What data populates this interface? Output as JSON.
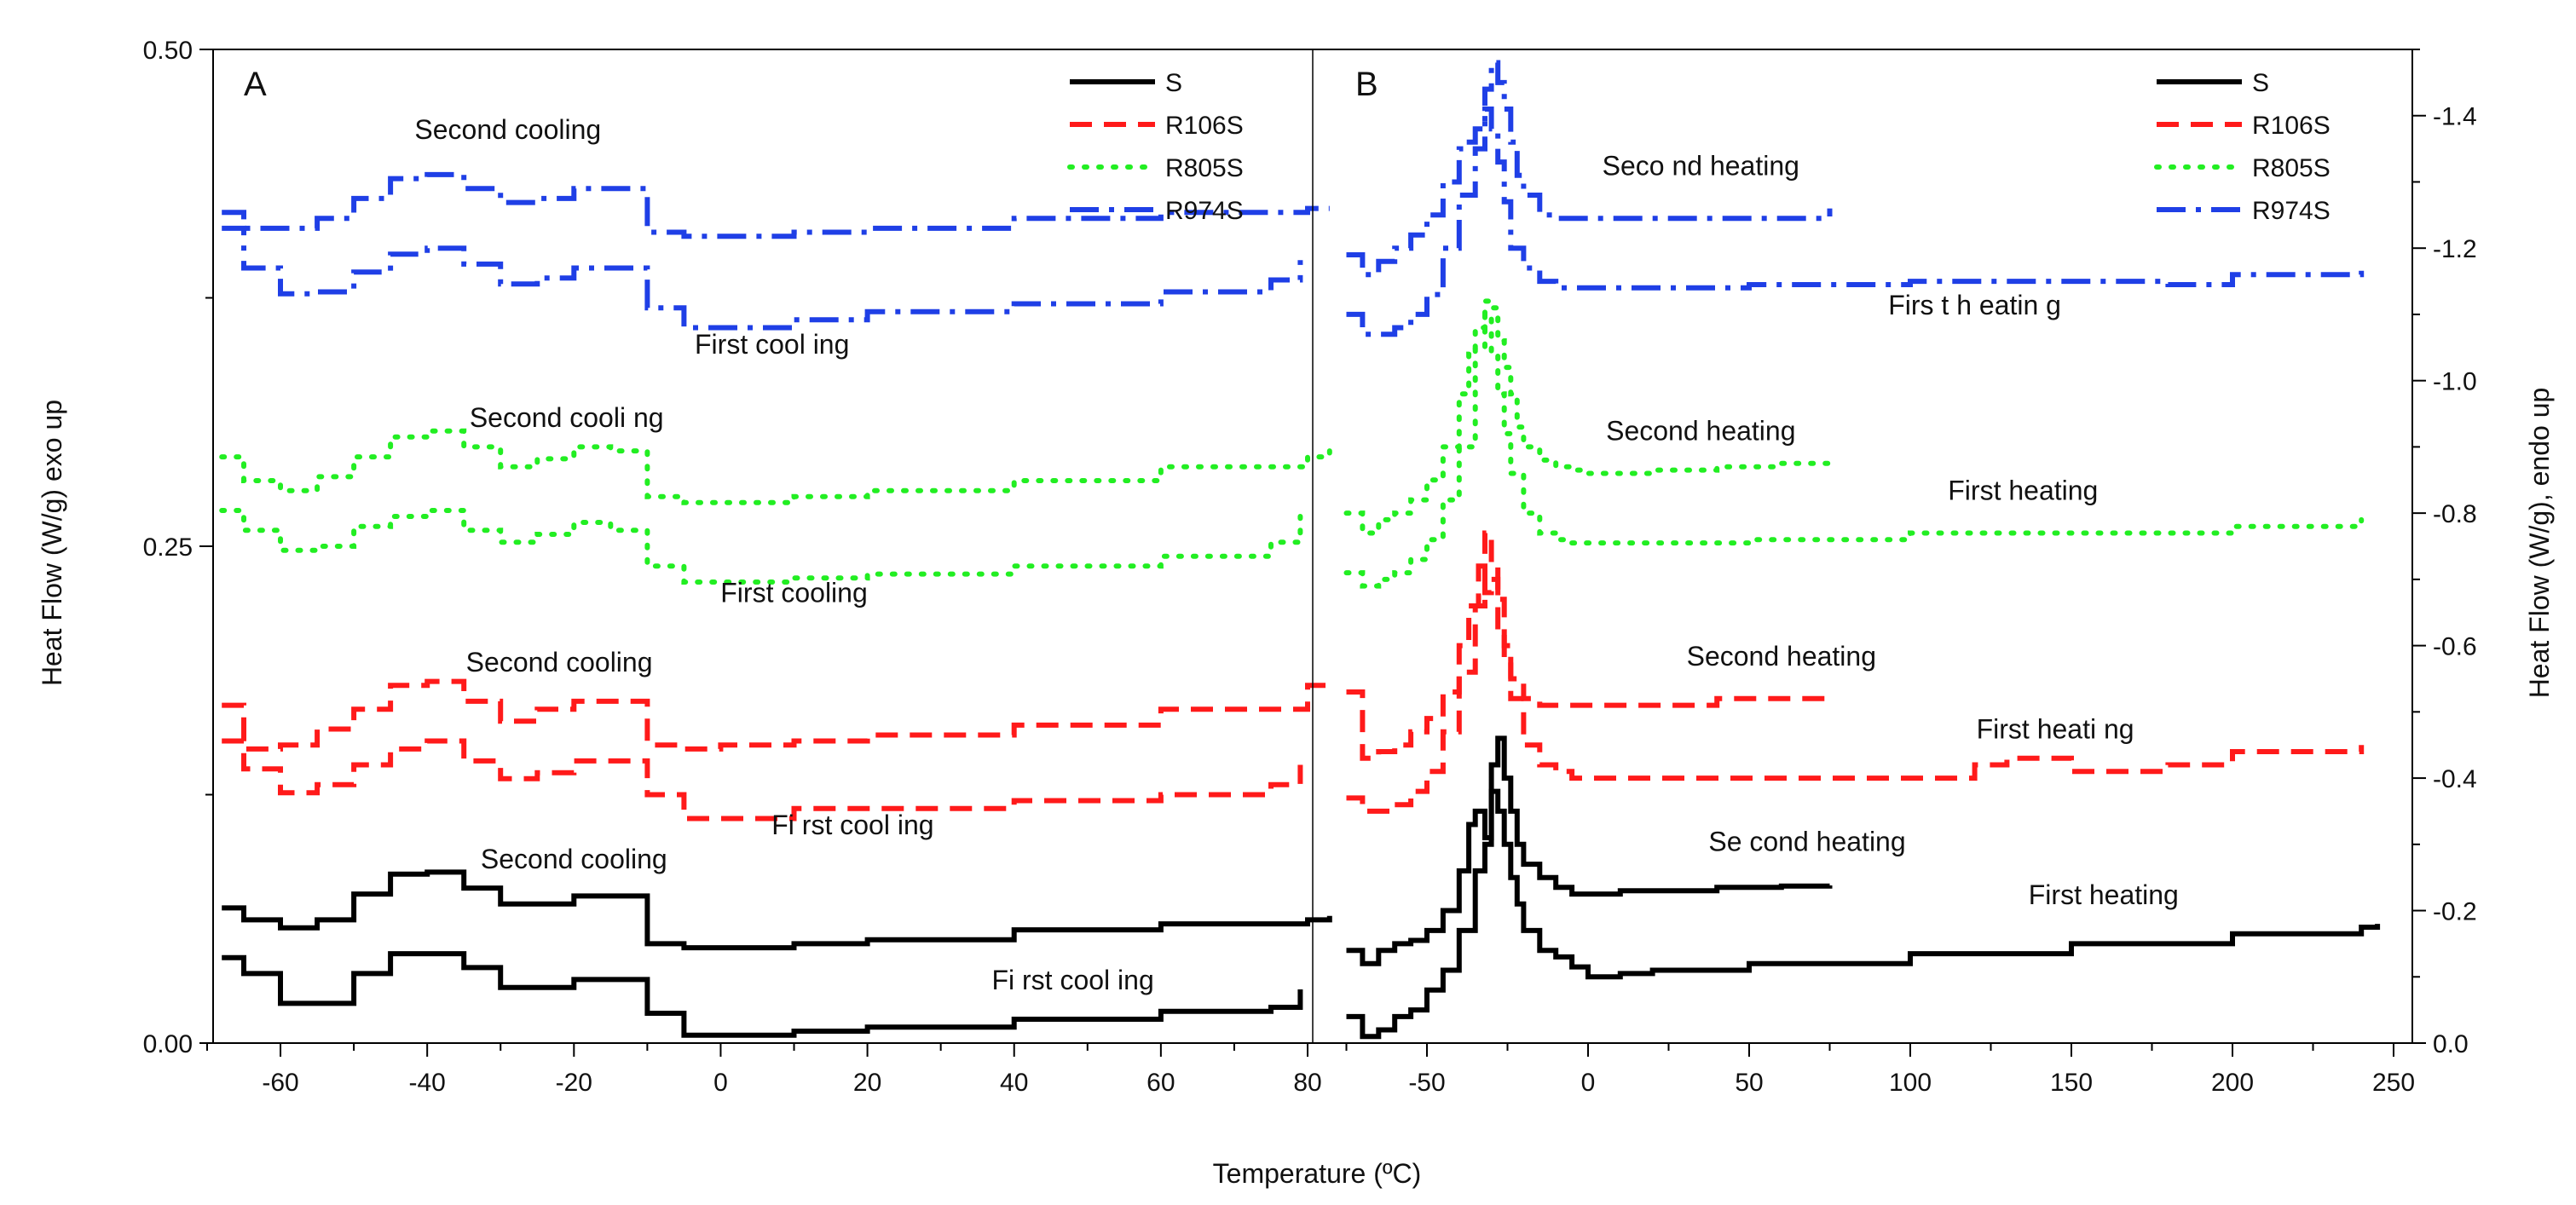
{
  "chart_data": [
    {
      "panel": "A",
      "type": "line",
      "xlabel": "Temperature (ºC)",
      "ylabel": "Heat Flow (W/g) exo up",
      "xlim": [
        -70,
        83
      ],
      "ylim": [
        0,
        0.5
      ],
      "xticks": [
        "-60",
        "-40",
        "-20",
        "0",
        "20",
        "40",
        "60",
        "80"
      ],
      "yticks": [
        "0.00",
        "0.25",
        "0.50"
      ],
      "colors": {
        "S": "#000000",
        "R106S": "#ff1a1a",
        "R805S": "#22ee22",
        "R974S": "#1f3fe6"
      },
      "legend": [
        "S",
        "R106S",
        "R805S",
        "R974S"
      ],
      "legend_position": "top-right",
      "series": [
        {
          "name": "S",
          "curve": "Second cooling",
          "x": [
            -68,
            -65,
            -60,
            -55,
            -50,
            -45,
            -40,
            -35,
            -30,
            -25,
            -20,
            -15,
            -10,
            -5,
            0,
            10,
            20,
            40,
            60,
            80,
            83
          ],
          "values": [
            0.068,
            0.062,
            0.058,
            0.062,
            0.075,
            0.085,
            0.086,
            0.078,
            0.07,
            0.07,
            0.074,
            0.074,
            0.05,
            0.048,
            0.048,
            0.05,
            0.052,
            0.057,
            0.06,
            0.062,
            0.064
          ]
        },
        {
          "name": "S",
          "curve": "First cooling",
          "x": [
            -68,
            -65,
            -60,
            -55,
            -50,
            -45,
            -40,
            -35,
            -30,
            -25,
            -20,
            -15,
            -10,
            -5,
            0,
            10,
            20,
            40,
            60,
            75,
            79
          ],
          "values": [
            0.043,
            0.035,
            0.02,
            0.02,
            0.035,
            0.045,
            0.045,
            0.038,
            0.028,
            0.028,
            0.032,
            0.032,
            0.015,
            0.004,
            0.004,
            0.006,
            0.008,
            0.012,
            0.016,
            0.018,
            0.027
          ]
        },
        {
          "name": "R106S",
          "curve": "Second cooling",
          "x": [
            -68,
            -65,
            -60,
            -55,
            -50,
            -45,
            -40,
            -35,
            -30,
            -25,
            -20,
            -15,
            -10,
            -5,
            0,
            10,
            20,
            40,
            60,
            80,
            83
          ],
          "values": [
            0.17,
            0.148,
            0.15,
            0.158,
            0.168,
            0.18,
            0.182,
            0.172,
            0.162,
            0.168,
            0.172,
            0.172,
            0.15,
            0.148,
            0.15,
            0.152,
            0.155,
            0.16,
            0.168,
            0.18,
            0.182
          ]
        },
        {
          "name": "R106S",
          "curve": "First cooling",
          "x": [
            -68,
            -65,
            -60,
            -55,
            -50,
            -45,
            -40,
            -35,
            -30,
            -25,
            -20,
            -15,
            -10,
            -5,
            0,
            10,
            20,
            40,
            60,
            75,
            79
          ],
          "values": [
            0.152,
            0.138,
            0.126,
            0.13,
            0.14,
            0.148,
            0.152,
            0.142,
            0.133,
            0.136,
            0.142,
            0.142,
            0.125,
            0.113,
            0.113,
            0.118,
            0.118,
            0.122,
            0.125,
            0.13,
            0.14
          ]
        },
        {
          "name": "R805S",
          "curve": "Second cooling",
          "x": [
            -68,
            -65,
            -60,
            -55,
            -50,
            -45,
            -40,
            -35,
            -30,
            -25,
            -20,
            -15,
            -10,
            -5,
            0,
            10,
            20,
            40,
            60,
            80,
            83
          ],
          "values": [
            0.295,
            0.283,
            0.278,
            0.285,
            0.295,
            0.305,
            0.308,
            0.3,
            0.29,
            0.294,
            0.3,
            0.298,
            0.275,
            0.272,
            0.272,
            0.275,
            0.278,
            0.283,
            0.29,
            0.295,
            0.298
          ]
        },
        {
          "name": "R805S",
          "curve": "First cooling",
          "x": [
            -68,
            -65,
            -60,
            -55,
            -50,
            -45,
            -40,
            -35,
            -30,
            -25,
            -20,
            -15,
            -10,
            -5,
            0,
            10,
            20,
            40,
            60,
            75,
            79
          ],
          "values": [
            0.268,
            0.258,
            0.248,
            0.25,
            0.26,
            0.265,
            0.268,
            0.258,
            0.252,
            0.256,
            0.262,
            0.258,
            0.24,
            0.232,
            0.232,
            0.234,
            0.236,
            0.24,
            0.245,
            0.252,
            0.265
          ]
        },
        {
          "name": "R974S",
          "curve": "Second cooling",
          "x": [
            -68,
            -65,
            -60,
            -55,
            -50,
            -45,
            -40,
            -35,
            -30,
            -25,
            -20,
            -15,
            -10,
            -5,
            0,
            10,
            20,
            40,
            60,
            80,
            83
          ],
          "values": [
            0.418,
            0.41,
            0.41,
            0.415,
            0.425,
            0.435,
            0.437,
            0.43,
            0.423,
            0.425,
            0.43,
            0.43,
            0.408,
            0.406,
            0.406,
            0.408,
            0.41,
            0.415,
            0.418,
            0.42,
            0.42
          ]
        },
        {
          "name": "R974S",
          "curve": "First cooling",
          "x": [
            -68,
            -65,
            -60,
            -55,
            -50,
            -45,
            -40,
            -35,
            -30,
            -25,
            -20,
            -15,
            -10,
            -5,
            0,
            10,
            20,
            40,
            60,
            75,
            79
          ],
          "values": [
            0.41,
            0.39,
            0.377,
            0.378,
            0.388,
            0.397,
            0.4,
            0.392,
            0.382,
            0.385,
            0.39,
            0.39,
            0.37,
            0.36,
            0.36,
            0.364,
            0.368,
            0.372,
            0.378,
            0.384,
            0.394
          ]
        }
      ],
      "annotations": [
        {
          "text": "Second cooling",
          "x": -29,
          "y": 0.455
        },
        {
          "text": "First cool ing",
          "x": 7,
          "y": 0.347
        },
        {
          "text": "Second cooli ng",
          "x": -21,
          "y": 0.31
        },
        {
          "text": "First cooling",
          "x": 10,
          "y": 0.222
        },
        {
          "text": "Second cooling",
          "x": -22,
          "y": 0.187
        },
        {
          "text": "Fi rst cool ing",
          "x": 18,
          "y": 0.105
        },
        {
          "text": "Second  cooling",
          "x": -20,
          "y": 0.088
        },
        {
          "text": "Fi rst cool ing",
          "x": 48,
          "y": 0.027
        }
      ]
    },
    {
      "panel": "B",
      "type": "line",
      "ylabel": "Heat Flow (W/g), endo up",
      "xlim": [
        -85,
        255
      ],
      "ylim": [
        0,
        -1.5
      ],
      "xticks": [
        "-50",
        "0",
        "50",
        "100",
        "150",
        "200",
        "250"
      ],
      "yticks": [
        "0.0",
        "-0.2",
        "-0.4",
        "-0.6",
        "-0.8",
        "-1.0",
        "-1.2",
        "-1.4"
      ],
      "legend": [
        "S",
        "R106S",
        "R805S",
        "R974S"
      ],
      "legend_position": "top-right",
      "series": [
        {
          "name": "S",
          "curve": "Second heating",
          "x": [
            -75,
            -70,
            -65,
            -60,
            -55,
            -50,
            -45,
            -40,
            -37,
            -35,
            -32,
            -30,
            -28,
            -26,
            -24,
            -22,
            -20,
            -15,
            -10,
            -5,
            0,
            10,
            20,
            40,
            60,
            75
          ],
          "values": [
            -0.14,
            -0.12,
            -0.14,
            -0.15,
            -0.155,
            -0.17,
            -0.2,
            -0.26,
            -0.33,
            -0.35,
            -0.31,
            -0.42,
            -0.46,
            -0.4,
            -0.35,
            -0.3,
            -0.27,
            -0.25,
            -0.235,
            -0.225,
            -0.225,
            -0.23,
            -0.23,
            -0.235,
            -0.237,
            -0.238
          ]
        },
        {
          "name": "S",
          "curve": "First heating",
          "x": [
            -75,
            -70,
            -65,
            -60,
            -55,
            -50,
            -45,
            -40,
            -35,
            -32,
            -30,
            -28,
            -26,
            -24,
            -22,
            -20,
            -15,
            -10,
            -5,
            0,
            10,
            20,
            50,
            100,
            150,
            200,
            240,
            245
          ],
          "values": [
            -0.04,
            -0.01,
            -0.02,
            -0.04,
            -0.05,
            -0.08,
            -0.11,
            -0.17,
            -0.26,
            -0.3,
            -0.38,
            -0.35,
            -0.3,
            -0.25,
            -0.21,
            -0.17,
            -0.14,
            -0.13,
            -0.115,
            -0.1,
            -0.105,
            -0.11,
            -0.12,
            -0.135,
            -0.15,
            -0.165,
            -0.175,
            -0.18
          ]
        },
        {
          "name": "R106S",
          "curve": "Second heating",
          "x": [
            -75,
            -70,
            -65,
            -60,
            -55,
            -50,
            -45,
            -40,
            -37,
            -34,
            -32,
            -30,
            -28,
            -26,
            -24,
            -20,
            -15,
            -10,
            -5,
            0,
            20,
            40,
            60,
            75
          ],
          "values": [
            -0.53,
            -0.43,
            -0.44,
            -0.45,
            -0.47,
            -0.49,
            -0.53,
            -0.6,
            -0.66,
            -0.72,
            -0.68,
            -0.7,
            -0.62,
            -0.58,
            -0.55,
            -0.52,
            -0.51,
            -0.51,
            -0.51,
            -0.51,
            -0.51,
            -0.52,
            -0.52,
            -0.52
          ]
        },
        {
          "name": "R106S",
          "curve": "First heating",
          "x": [
            -75,
            -70,
            -65,
            -60,
            -55,
            -50,
            -45,
            -40,
            -35,
            -32,
            -30,
            -28,
            -26,
            -24,
            -20,
            -15,
            -10,
            -5,
            0,
            50,
            100,
            120,
            130,
            150,
            180,
            200,
            240
          ],
          "values": [
            -0.37,
            -0.35,
            -0.35,
            -0.36,
            -0.38,
            -0.41,
            -0.47,
            -0.56,
            -0.66,
            -0.77,
            -0.73,
            -0.67,
            -0.6,
            -0.52,
            -0.45,
            -0.42,
            -0.41,
            -0.4,
            -0.4,
            -0.4,
            -0.4,
            -0.42,
            -0.43,
            -0.41,
            -0.42,
            -0.44,
            -0.45
          ]
        },
        {
          "name": "R805S",
          "curve": "Second heating",
          "x": [
            -75,
            -70,
            -65,
            -60,
            -55,
            -50,
            -45,
            -40,
            -37,
            -35,
            -32,
            -30,
            -28,
            -26,
            -24,
            -22,
            -20,
            -15,
            -10,
            -5,
            0,
            20,
            40,
            60,
            75
          ],
          "values": [
            -0.8,
            -0.77,
            -0.79,
            -0.8,
            -0.82,
            -0.85,
            -0.9,
            -0.98,
            -1.04,
            -1.08,
            -1.12,
            -1.11,
            -1.06,
            -1.02,
            -0.98,
            -0.93,
            -0.9,
            -0.88,
            -0.87,
            -0.865,
            -0.86,
            -0.865,
            -0.87,
            -0.875,
            -0.88
          ]
        },
        {
          "name": "R805S",
          "curve": "First heating",
          "x": [
            -75,
            -70,
            -65,
            -60,
            -55,
            -50,
            -45,
            -40,
            -35,
            -32,
            -30,
            -28,
            -26,
            -24,
            -20,
            -15,
            -10,
            -5,
            0,
            50,
            100,
            150,
            200,
            240
          ],
          "values": [
            -0.71,
            -0.69,
            -0.7,
            -0.71,
            -0.73,
            -0.76,
            -0.82,
            -0.9,
            -1.05,
            -1.1,
            -1.04,
            -0.98,
            -0.92,
            -0.86,
            -0.8,
            -0.77,
            -0.76,
            -0.755,
            -0.755,
            -0.76,
            -0.77,
            -0.77,
            -0.78,
            -0.79
          ]
        },
        {
          "name": "R974S",
          "curve": "Second heating",
          "x": [
            -75,
            -70,
            -65,
            -60,
            -55,
            -50,
            -45,
            -40,
            -38,
            -35,
            -32,
            -30,
            -28,
            -26,
            -24,
            -22,
            -20,
            -15,
            -10,
            -5,
            0,
            20,
            40,
            60,
            75
          ],
          "values": [
            -1.19,
            -1.16,
            -1.18,
            -1.2,
            -1.22,
            -1.25,
            -1.3,
            -1.35,
            -1.36,
            -1.38,
            -1.44,
            -1.48,
            -1.45,
            -1.41,
            -1.36,
            -1.31,
            -1.28,
            -1.25,
            -1.245,
            -1.245,
            -1.245,
            -1.245,
            -1.245,
            -1.245,
            -1.26
          ]
        },
        {
          "name": "R974S",
          "curve": "First heating",
          "x": [
            -75,
            -70,
            -65,
            -60,
            -55,
            -50,
            -45,
            -40,
            -35,
            -32,
            -30,
            -28,
            -26,
            -24,
            -20,
            -15,
            -10,
            -5,
            0,
            50,
            100,
            150,
            180,
            200,
            240
          ],
          "values": [
            -1.1,
            -1.07,
            -1.07,
            -1.08,
            -1.1,
            -1.13,
            -1.2,
            -1.28,
            -1.35,
            -1.41,
            -1.38,
            -1.33,
            -1.27,
            -1.2,
            -1.17,
            -1.15,
            -1.14,
            -1.14,
            -1.14,
            -1.145,
            -1.15,
            -1.15,
            -1.145,
            -1.16,
            -1.17
          ]
        }
      ],
      "annotations": [
        {
          "text": "Seco nd heating",
          "x": 35,
          "y": -1.31
        },
        {
          "text": "Firs t h eatin g",
          "x": 120,
          "y": -1.1
        },
        {
          "text": "Second  heating",
          "x": 35,
          "y": -0.91
        },
        {
          "text": "First heating",
          "x": 135,
          "y": -0.82
        },
        {
          "text": "Second heating",
          "x": 60,
          "y": -0.57
        },
        {
          "text": "First  heati ng",
          "x": 145,
          "y": -0.46
        },
        {
          "text": "Se cond heating",
          "x": 68,
          "y": -0.29
        },
        {
          "text": "First heating",
          "x": 160,
          "y": -0.21
        }
      ]
    }
  ]
}
